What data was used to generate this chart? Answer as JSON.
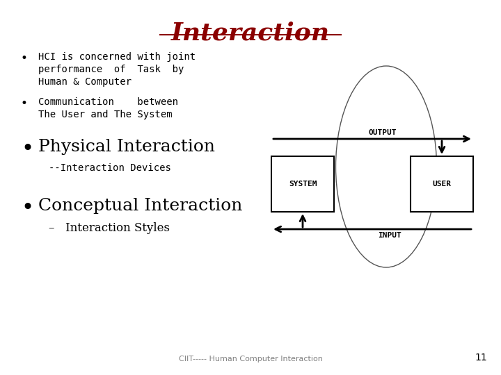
{
  "title": "Interaction",
  "title_color": "#8B0000",
  "title_fontsize": 26,
  "bg_color": "#FFFFFF",
  "bullet1": [
    "HCI is concerned with joint",
    "performance  of  Task  by",
    "Human & Computer"
  ],
  "bullet2": [
    "Communication    between",
    "The User and The System"
  ],
  "bullet3": "Physical Interaction",
  "bullet3_sub": "--Interaction Devices",
  "bullet4": "Conceptual Interaction",
  "bullet4_sub": "–   Interaction Styles",
  "footer": "CIIT----- Human Computer Interaction",
  "footer_page": "11",
  "text_color": "#000000",
  "small_fs": 10,
  "medium_fs": 18,
  "diagram": {
    "system_label": "SYSTEM",
    "user_label": "USER",
    "output_label": "OUTPUT",
    "input_label": "INPUT"
  }
}
